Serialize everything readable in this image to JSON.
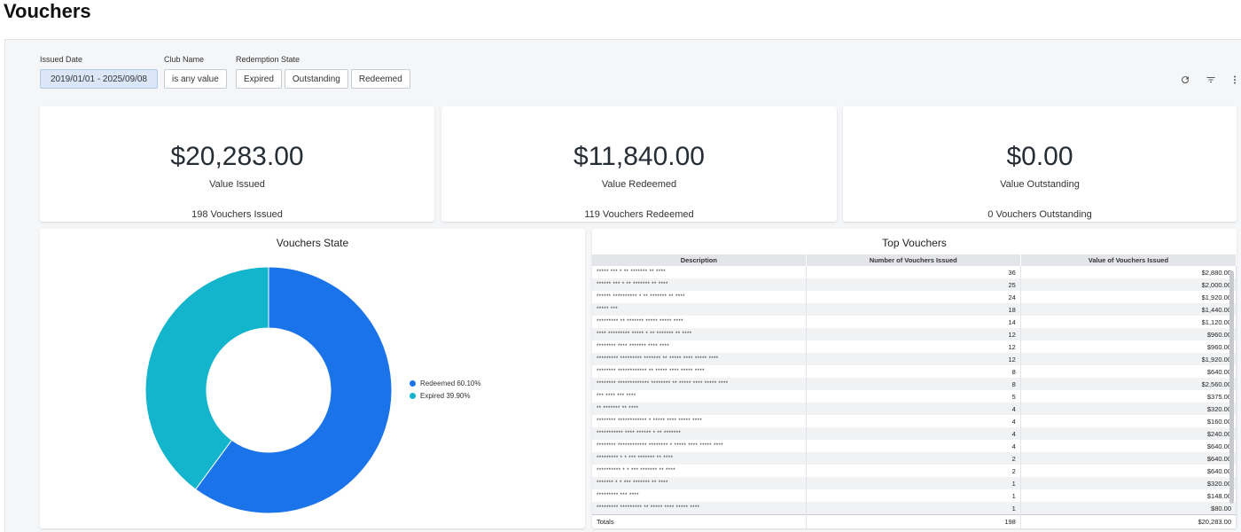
{
  "page": {
    "title": "Vouchers"
  },
  "filters": {
    "issued_date": {
      "label": "Issued Date",
      "value": "2019/01/01 - 2025/09/08"
    },
    "club_name": {
      "label": "Club Name",
      "value": "is any value"
    },
    "redemption_state": {
      "label": "Redemption State",
      "options": [
        "Expired",
        "Outstanding",
        "Redeemed"
      ]
    }
  },
  "toolbar": {
    "icons": [
      "refresh-icon",
      "filter-icon",
      "more-vertical-icon"
    ]
  },
  "kpis": [
    {
      "value": "$20,283.00",
      "label": "Value Issued",
      "footer": "198 Vouchers Issued"
    },
    {
      "value": "$11,840.00",
      "label": "Value Redeemed",
      "footer": "119 Vouchers Redeemed"
    },
    {
      "value": "$0.00",
      "label": "Value Outstanding",
      "footer": "0 Vouchers Outstanding"
    }
  ],
  "chart_data": {
    "type": "pie",
    "title": "Vouchers State",
    "slices": [
      {
        "label": "Redeemed 60.10%",
        "value": 60.1,
        "color": "#1a73e8"
      },
      {
        "label": "Expired 39.90%",
        "value": 39.9,
        "color": "#12b5cb"
      }
    ],
    "legend_position": "right"
  },
  "top_vouchers": {
    "title": "Top Vouchers",
    "columns": [
      "Description",
      "Number of Vouchers Issued",
      "Value of Vouchers Issued"
    ],
    "rows": [
      {
        "desc": "***** *** * ** ******* ** ****",
        "count": "36",
        "value": "$2,880.00"
      },
      {
        "desc": "****** *** * ** ******* ** ****",
        "count": "25",
        "value": "$2,000.00"
      },
      {
        "desc": "****** ********** * ** ******* ** ****",
        "count": "24",
        "value": "$1,920.00"
      },
      {
        "desc": "***** ***",
        "count": "18",
        "value": "$1,440.00"
      },
      {
        "desc": "********* ** ******* ***** ***** ****",
        "count": "14",
        "value": "$1,120.00"
      },
      {
        "desc": "**** ********* ***** * ** ******* ** ****",
        "count": "12",
        "value": "$960.00"
      },
      {
        "desc": "******** **** ******* **** ****",
        "count": "12",
        "value": "$960.00"
      },
      {
        "desc": "********* ********* ******* ** ***** **** ***** ****",
        "count": "12",
        "value": "$1,920.00"
      },
      {
        "desc": "******** ************ ** ***** **** ***** ****",
        "count": "8",
        "value": "$640.00"
      },
      {
        "desc": "******** ************* ******** ** ***** **** ***** ****",
        "count": "8",
        "value": "$2,560.00"
      },
      {
        "desc": "*** **** *** ****",
        "count": "5",
        "value": "$375.00"
      },
      {
        "desc": "** ******* ** ****",
        "count": "4",
        "value": "$320.00"
      },
      {
        "desc": "******** ************ * ***** **** ***** ****",
        "count": "4",
        "value": "$160.00"
      },
      {
        "desc": "*********** **** ****** * ** *******",
        "count": "4",
        "value": "$240.00"
      },
      {
        "desc": "******** ************ ******** * ***** **** ***** ****",
        "count": "4",
        "value": "$640.00"
      },
      {
        "desc": "********* * * *** ******* ** ****",
        "count": "2",
        "value": "$640.00"
      },
      {
        "desc": "********** * * *** ******* ** ****",
        "count": "2",
        "value": "$640.00"
      },
      {
        "desc": "******* * * *** ******* ** ****",
        "count": "1",
        "value": "$320.00"
      },
      {
        "desc": "********* *** ****",
        "count": "1",
        "value": "$148.00"
      },
      {
        "desc": "********* ********* ** ***** **** ***** ****",
        "count": "1",
        "value": "$80.00"
      }
    ],
    "totals": {
      "label": "Totals",
      "count": "198",
      "value": "$20,283.00"
    }
  }
}
